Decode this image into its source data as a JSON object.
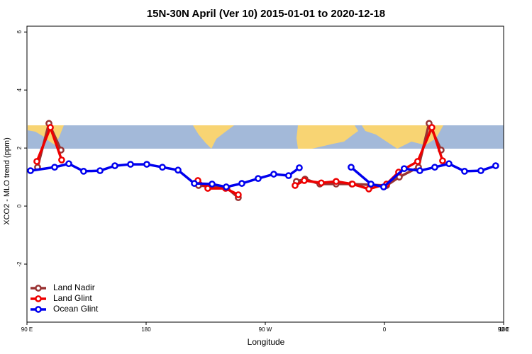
{
  "chart_data": {
    "type": "line",
    "title": "15N-30N April (Ver 10)   2015-01-01 to 2020-12-18",
    "xlabel": "Longitude",
    "ylabel": "XCO2 - MLO trend (ppm)",
    "xlim": [
      90,
      450
    ],
    "ylim": [
      -4,
      6.2
    ],
    "xticks": [
      {
        "value": 90,
        "label": "90 E"
      },
      {
        "value": 180,
        "label": "180"
      },
      {
        "value": 270,
        "label": "90 W"
      },
      {
        "value": 360,
        "label": "0"
      },
      {
        "value": 450,
        "label": "90 E"
      },
      {
        "value": 540,
        "label": "180"
      }
    ],
    "yticks": [
      -2,
      0,
      2,
      4,
      6
    ],
    "legend": "bottom-left",
    "series": [
      {
        "name": "Land Nadir",
        "color": "#993333",
        "x": [
          98.0,
          106.6,
          115.7,
          170,
          219.6,
          241.0,
          249.6,
          280,
          293.5,
          300.0,
          311.2,
          323.5,
          335.3,
          361.6,
          371.2,
          385.7,
          393.7,
          402.8
        ],
        "values": [
          1.34,
          2.85,
          1.93,
          null,
          0.71,
          0.63,
          0.29,
          null,
          0.85,
          0.93,
          0.76,
          0.76,
          0.76,
          0.71,
          1.0,
          1.34,
          2.85,
          1.93
        ]
      },
      {
        "name": "Land Glint",
        "color": "#ee0000",
        "x": [
          97.5,
          107.7,
          116.2,
          170,
          219.1,
          226.6,
          240.0,
          249.6,
          280,
          292.5,
          299.4,
          312.3,
          323.5,
          335.8,
          348.2,
          361.6,
          370.7,
          385.1,
          395.8,
          403.9
        ],
        "values": [
          1.54,
          2.71,
          1.59,
          null,
          0.88,
          0.61,
          0.61,
          0.39,
          null,
          0.71,
          0.88,
          0.8,
          0.85,
          0.76,
          0.59,
          0.76,
          1.17,
          1.54,
          2.71,
          1.56
        ]
      },
      {
        "name": "Ocean Glint",
        "color": "#0000ee",
        "x": [
          92.7,
          110.9,
          121.6,
          132.8,
          145.2,
          156.4,
          168.2,
          180.5,
          192.3,
          204.1,
          216.4,
          229.8,
          240.5,
          252.3,
          264.6,
          276.4,
          287.6,
          295.7,
          315,
          334.8,
          349.8,
          359.4,
          374.9,
          386.7,
          398.0,
          408.7,
          420.5,
          432.8,
          444.0
        ],
        "values": [
          1.22,
          1.34,
          1.46,
          1.2,
          1.22,
          1.39,
          1.44,
          1.44,
          1.34,
          1.24,
          0.78,
          0.76,
          0.66,
          0.78,
          0.95,
          1.1,
          1.05,
          1.32,
          null,
          1.34,
          0.76,
          0.66,
          1.29,
          1.22,
          1.34,
          1.46,
          1.2,
          1.22,
          1.39
        ]
      }
    ]
  }
}
